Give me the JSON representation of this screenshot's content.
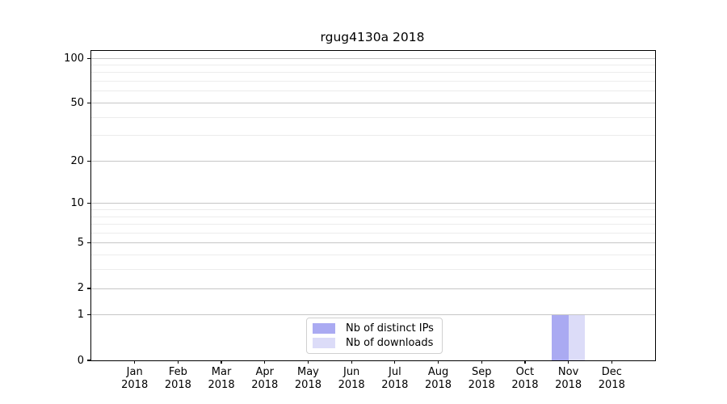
{
  "chart_data": {
    "type": "bar",
    "title": "rgug4130a 2018",
    "categories": [
      "Jan 2018",
      "Feb 2018",
      "Mar 2018",
      "Apr 2018",
      "May 2018",
      "Jun 2018",
      "Jul 2018",
      "Aug 2018",
      "Sep 2018",
      "Oct 2018",
      "Nov 2018",
      "Dec 2018"
    ],
    "series": [
      {
        "name": "Nb of distinct IPs",
        "color": "#aaaaf2",
        "values": [
          0,
          0,
          0,
          0,
          0,
          0,
          0,
          0,
          0,
          0,
          1,
          0
        ]
      },
      {
        "name": "Nb of downloads",
        "color": "#dcdcf8",
        "values": [
          0,
          0,
          0,
          0,
          0,
          0,
          0,
          0,
          0,
          0,
          1,
          0
        ]
      }
    ],
    "xlabel": "",
    "ylabel": "",
    "y_scale": "log1p",
    "y_axis_ticks": [
      0,
      1,
      2,
      5,
      10,
      20,
      50,
      100
    ],
    "y_minor_gridlines": [
      3,
      4,
      6,
      7,
      8,
      9,
      30,
      40,
      60,
      70,
      80,
      90
    ],
    "ylim": [
      0,
      112
    ],
    "grid": true,
    "grid_major_color": "#c6c6c6",
    "grid_minor_color": "#ececec",
    "legend_position": "lower center"
  }
}
